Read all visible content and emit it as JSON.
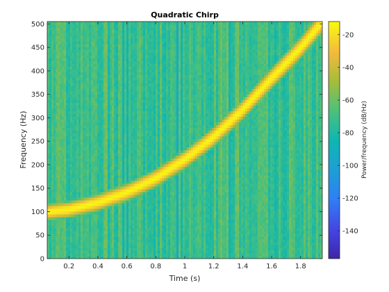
{
  "chart_data": {
    "type": "heatmap",
    "title": "Quadratic Chirp",
    "xlabel": "Time (s)",
    "ylabel": "Frequency (Hz)",
    "xlim": [
      0.05,
      1.95
    ],
    "ylim": [
      0,
      505
    ],
    "x_ticks": [
      0.2,
      0.4,
      0.6,
      0.8,
      1,
      1.2,
      1.4,
      1.6,
      1.8
    ],
    "x_tick_labels": [
      "0.2",
      "0.4",
      "0.6",
      "0.8",
      "1",
      "1.2",
      "1.4",
      "1.6",
      "1.8"
    ],
    "y_ticks": [
      0,
      50,
      100,
      150,
      200,
      250,
      300,
      350,
      400,
      450,
      500
    ],
    "y_tick_labels": [
      "0",
      "50",
      "100",
      "150",
      "200",
      "250",
      "300",
      "350",
      "400",
      "450",
      "500"
    ],
    "colorbar": {
      "label": "Power/frequency (dB/Hz)",
      "range": [
        -157,
        -12
      ],
      "ticks": [
        -20,
        -40,
        -60,
        -80,
        -100,
        -120,
        -140
      ],
      "tick_labels": [
        "-20",
        "-40",
        "-60",
        "-80",
        "-100",
        "-120",
        "-140"
      ],
      "colormap": "parula"
    },
    "ridge": {
      "description_of_values": "peak frequency (Hz) vs time (s)",
      "t": [
        0.05,
        0.2,
        0.4,
        0.6,
        0.8,
        1.0,
        1.2,
        1.4,
        1.6,
        1.8,
        1.95
      ],
      "f": [
        100,
        105,
        120,
        142,
        172,
        212,
        260,
        318,
        385,
        450,
        505
      ]
    },
    "peak_power_db": -15,
    "background_power_db": -70
  }
}
